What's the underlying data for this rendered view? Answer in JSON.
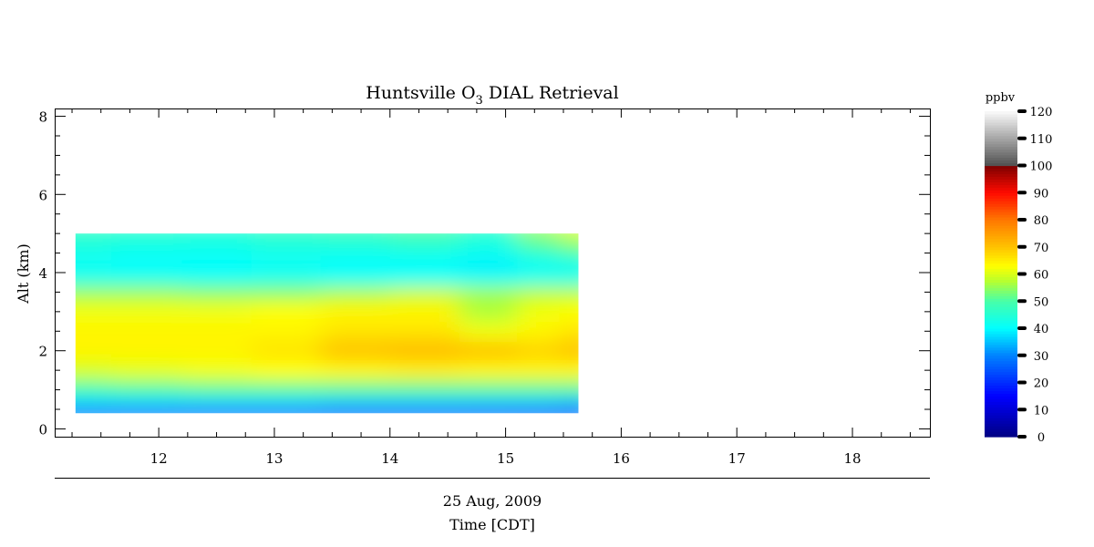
{
  "chart_data": {
    "type": "heatmap",
    "title_main": "Huntsville O",
    "title_sub": "3",
    "title_rest": " DIAL Retrieval",
    "ylabel": "Alt (km)",
    "xlabel_date": "25 Aug, 2009",
    "xlabel": "Time [CDT]",
    "xlim": [
      11.1,
      18.67
    ],
    "ylim": [
      -0.2,
      8.2
    ],
    "xticks": [
      "12",
      "13",
      "14",
      "15",
      "16",
      "17",
      "18"
    ],
    "yticks": [
      "0",
      "2",
      "4",
      "6",
      "8"
    ],
    "colorbar": {
      "label": "ppbv",
      "range": [
        0,
        120
      ],
      "ticks": [
        "0",
        "10",
        "20",
        "30",
        "40",
        "50",
        "60",
        "70",
        "80",
        "90",
        "100",
        "110",
        "120"
      ]
    },
    "times": [
      11.28,
      11.9,
      12.5,
      13.1,
      13.7,
      14.3,
      14.9,
      15.3,
      15.63
    ],
    "altitudes": [
      5.0,
      4.6,
      4.2,
      3.8,
      3.5,
      3.0,
      2.5,
      2.0,
      1.5,
      1.0,
      0.7,
      0.4
    ],
    "values": [
      [
        47,
        46,
        45,
        47,
        48,
        50,
        46,
        55,
        60
      ],
      [
        43,
        42,
        42,
        43,
        43,
        44,
        42,
        48,
        52
      ],
      [
        41,
        40,
        40,
        41,
        40,
        40,
        39,
        41,
        42
      ],
      [
        43,
        43,
        42,
        43,
        42,
        42,
        42,
        43,
        43
      ],
      [
        56,
        56,
        55,
        55,
        57,
        59,
        56,
        58,
        58
      ],
      [
        62,
        62,
        62,
        63,
        64,
        64,
        57,
        62,
        63
      ],
      [
        64,
        64,
        64,
        64,
        66,
        66,
        62,
        64,
        66
      ],
      [
        64,
        64,
        64,
        66,
        70,
        71,
        70,
        68,
        70
      ],
      [
        60,
        61,
        62,
        63,
        64,
        65,
        64,
        64,
        64
      ],
      [
        50,
        51,
        52,
        52,
        52,
        52,
        52,
        52,
        52
      ],
      [
        38,
        38,
        38,
        38,
        37,
        37,
        37,
        37,
        36
      ],
      [
        24,
        24,
        23,
        23,
        22,
        22,
        21,
        20,
        18
      ]
    ]
  }
}
